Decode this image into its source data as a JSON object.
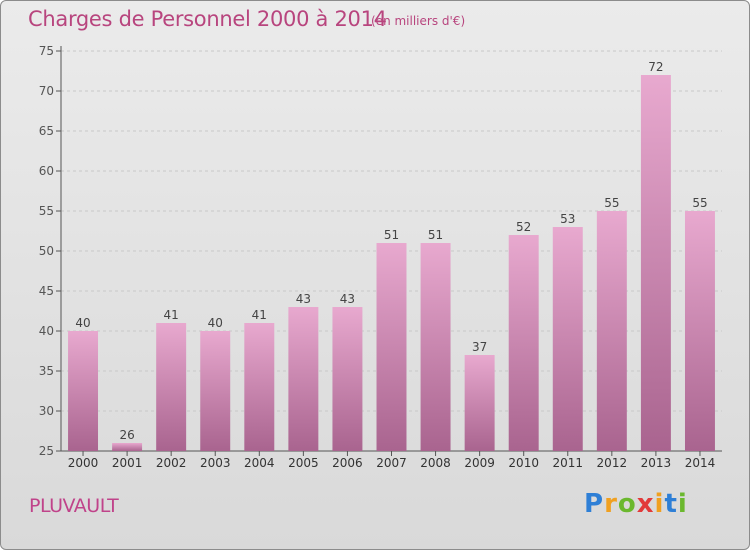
{
  "header": {
    "title": "Charges de Personnel 2000 à 2014",
    "subtitle": "(en milliers d'€)"
  },
  "footer": {
    "commune": "PLUVAULT",
    "logo_letters": [
      "P",
      "r",
      "o",
      "x",
      "i",
      "t",
      "i"
    ],
    "logo_colors": [
      "#2e7fd6",
      "#f0a020",
      "#6bb82e",
      "#e23a3a",
      "#f0a020",
      "#2e7fd6",
      "#6bb82e"
    ]
  },
  "chart_data": {
    "type": "bar",
    "categories": [
      "2000",
      "2001",
      "2002",
      "2003",
      "2004",
      "2005",
      "2006",
      "2007",
      "2008",
      "2009",
      "2010",
      "2011",
      "2012",
      "2013",
      "2014"
    ],
    "values": [
      40,
      26,
      41,
      40,
      41,
      43,
      43,
      51,
      51,
      37,
      52,
      53,
      55,
      72,
      55
    ],
    "data_labels": [
      "40",
      "26",
      "41",
      "40",
      "41",
      "43",
      "43",
      "51",
      "51",
      "37",
      "52",
      "53",
      "55",
      "72",
      "55"
    ],
    "ylim": [
      25,
      75
    ],
    "yticks": [
      25,
      30,
      35,
      40,
      45,
      50,
      55,
      60,
      65,
      70,
      75
    ],
    "grid": true,
    "bar_color_top": "#e8a9cf",
    "bar_color_bottom": "#a9648f"
  }
}
